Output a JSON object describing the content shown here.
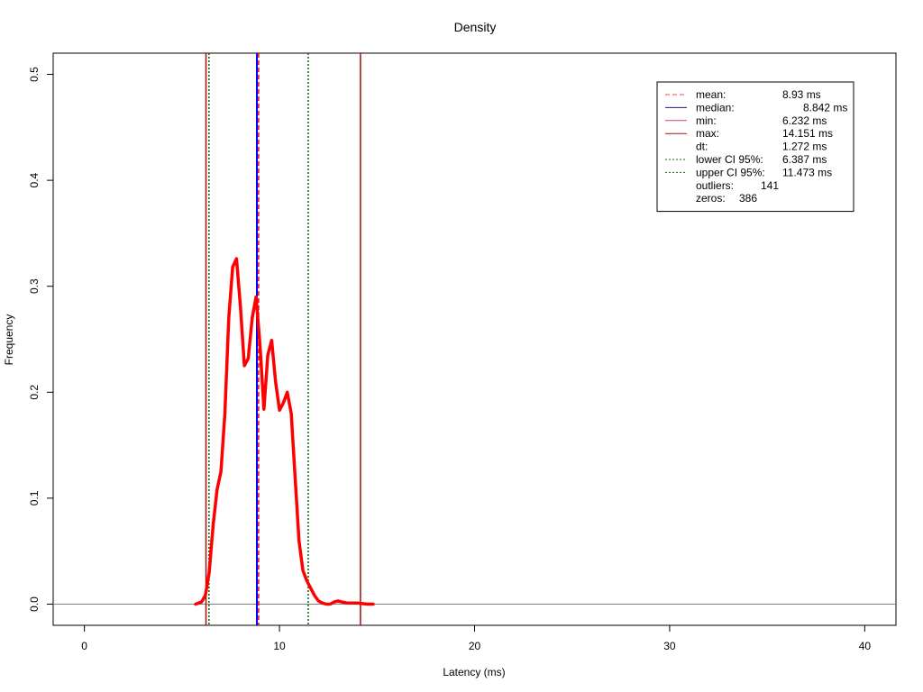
{
  "chart_data": {
    "type": "line",
    "title": "Density",
    "xlabel": "Latency (ms)",
    "ylabel": "Frequency",
    "xlim": [
      -1.6,
      41.6
    ],
    "ylim": [
      -0.02,
      0.52
    ],
    "xticks": [
      0,
      10,
      20,
      30,
      40
    ],
    "xtick_labels": [
      "0",
      "10",
      "20",
      "30",
      "40"
    ],
    "yticks": [
      0.0,
      0.1,
      0.2,
      0.3,
      0.4,
      0.5
    ],
    "ytick_labels": [
      "0.0",
      "0.1",
      "0.2",
      "0.3",
      "0.4",
      "0.5"
    ],
    "grid": false,
    "legend_position": "top-right",
    "baseline": {
      "y": 0,
      "color": "#808080"
    },
    "series": [
      {
        "color": "#ff0000",
        "x": [
          5.7,
          6.0,
          6.2,
          6.4,
          6.6,
          6.8,
          7.0,
          7.2,
          7.4,
          7.6,
          7.8,
          8.0,
          8.2,
          8.4,
          8.6,
          8.8,
          9.0,
          9.2,
          9.4,
          9.6,
          9.8,
          10.0,
          10.2,
          10.4,
          10.6,
          10.8,
          11.0,
          11.2,
          11.4,
          11.6,
          11.8,
          12.0,
          12.2,
          12.4,
          12.6,
          12.8,
          13.0,
          13.2,
          13.5,
          14.0,
          14.5,
          14.8
        ],
        "y": [
          0.0,
          0.002,
          0.008,
          0.03,
          0.075,
          0.108,
          0.125,
          0.18,
          0.27,
          0.318,
          0.326,
          0.28,
          0.225,
          0.232,
          0.27,
          0.29,
          0.245,
          0.184,
          0.235,
          0.249,
          0.21,
          0.183,
          0.19,
          0.2,
          0.18,
          0.12,
          0.06,
          0.032,
          0.022,
          0.015,
          0.008,
          0.003,
          0.001,
          0.0,
          0.0,
          0.002,
          0.003,
          0.002,
          0.001,
          0.001,
          0.0,
          0.0
        ]
      }
    ],
    "vlines": [
      {
        "name": "mean",
        "x": 8.93,
        "color": "#ff0000",
        "style": "dashed"
      },
      {
        "name": "median",
        "x": 8.842,
        "color": "#0000ff",
        "style": "solid"
      },
      {
        "name": "min",
        "x": 6.232,
        "color": "#a01010",
        "style": "solid"
      },
      {
        "name": "max",
        "x": 14.151,
        "color": "#a01010",
        "style": "solid"
      },
      {
        "name": "lower CI 95%",
        "x": 6.387,
        "color": "#006400",
        "style": "dotted"
      },
      {
        "name": "upper CI 95%",
        "x": 11.473,
        "color": "#006400",
        "style": "dotted"
      }
    ],
    "legend": [
      {
        "label": "mean:",
        "value": "8.93 ms",
        "color": "#ff4040",
        "style": "dashed"
      },
      {
        "label": "median:",
        "value": "8.842 ms",
        "color": "#1a1aa0",
        "style": "solid"
      },
      {
        "label": "min:",
        "value": "6.232 ms",
        "color": "#d04080",
        "style": "solid"
      },
      {
        "label": "max:",
        "value": "14.151 ms",
        "color": "#a01010",
        "style": "solid"
      },
      {
        "label": "dt:",
        "value": "1.272 ms",
        "color": "",
        "style": "none"
      },
      {
        "label": "lower CI 95%:",
        "value": "6.387 ms",
        "color": "#006400",
        "style": "dotted"
      },
      {
        "label": "upper CI 95%:",
        "value": "11.473 ms",
        "color": "#006400",
        "style": "dotted"
      },
      {
        "label": "outliers:",
        "value": "141",
        "color": "",
        "style": "none"
      },
      {
        "label": "zeros:",
        "value": "386",
        "color": "",
        "style": "none"
      }
    ]
  }
}
